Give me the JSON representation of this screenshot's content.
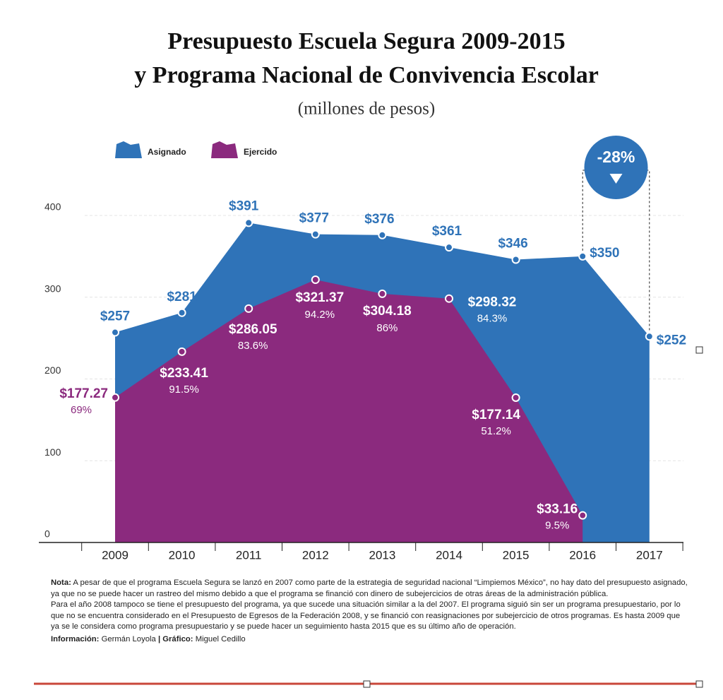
{
  "chart_data": {
    "type": "area",
    "title": [
      "Presupuesto Escuela Segura 2009-2015",
      "y Programa Nacional de Convivencia Escolar"
    ],
    "subtitle": "(millones de pesos)",
    "categories": [
      "2009",
      "2010",
      "2011",
      "2012",
      "2013",
      "2014",
      "2015",
      "2016",
      "2017"
    ],
    "series": [
      {
        "name": "Asignado",
        "color": "#2f73b8",
        "values": [
          257,
          281,
          391,
          377,
          376,
          361,
          346,
          350,
          252
        ],
        "value_labels": [
          "$257",
          "$281",
          "$391",
          "$377",
          "$376",
          "$361",
          "$346",
          "$350",
          "$252"
        ]
      },
      {
        "name": "Ejercido",
        "color": "#8b2a7e",
        "values": [
          177.27,
          233.41,
          286.05,
          321.37,
          304.18,
          298.32,
          177.14,
          33.16,
          null
        ],
        "value_labels": [
          "$177.27",
          "$233.41",
          "$286.05",
          "$321.37",
          "$304.18",
          "$298.32",
          "$177.14",
          "$33.16",
          null
        ],
        "percent_labels": [
          "69%",
          "91.5%",
          "83.6%",
          "94.2%",
          "86%",
          "84.3%",
          "51.2%",
          "9.5%",
          null
        ]
      }
    ],
    "ylim": [
      0,
      400
    ],
    "yticks": [
      0,
      100,
      200,
      300,
      400
    ],
    "grid": true,
    "annotation": "-28%",
    "notes": {
      "label": "Nota:",
      "paragraphs": [
        "A pesar de que el programa Escuela Segura se lanzó en 2007 como parte de la estrategia de seguridad nacional “Limpiemos México”, no hay dato del presupuesto asignado,  ya que  no se puede hacer un rastreo del mismo debido a que  el programa se financió con dinero de subejercicios de otras áreas de la administración pública.",
        "Para el año 2008 tampoco se tiene el presupuesto del programa, ya que sucede una situación similar a la del 2007. El programa siguió sin ser un programa presupuestario, por lo que no se encuentra considerado en el Presupuesto de Egresos de la Federación 2008, y se financió con reasignaciones por subejercicio de otros programas. Es hasta 2009 que ya se le considera como programa presupuestario  y se puede hacer un seguimiento hasta 2015 que es su último año de operación."
      ]
    },
    "credits": {
      "info_label": "Información:",
      "info": "Germán Loyola",
      "graphic_label": "| Gráfico:",
      "graphic": "Miguel Cedillo"
    }
  }
}
